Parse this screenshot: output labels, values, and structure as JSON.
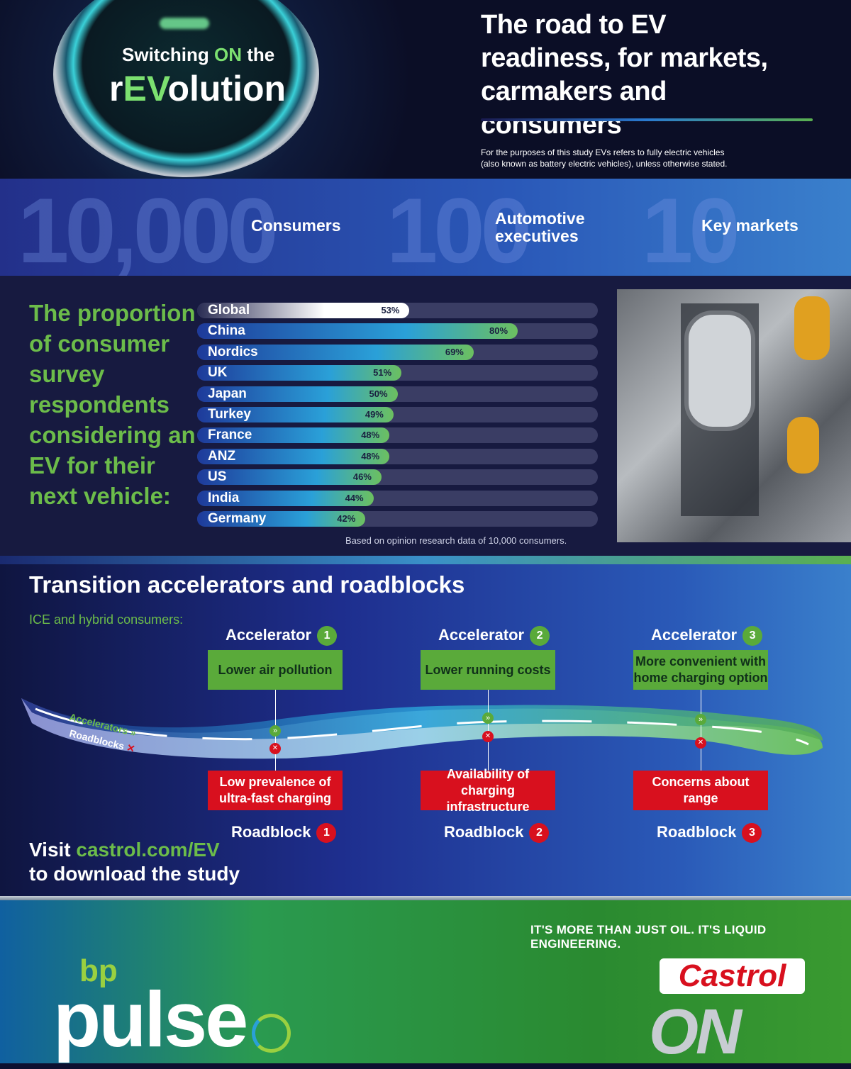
{
  "hero": {
    "badge_line1_a": "Switching ",
    "badge_line1_on": "ON",
    "badge_line1_b": " the",
    "badge_line2_a": "r",
    "badge_line2_ev": "EV",
    "badge_line2_b": "olution",
    "title": "The road to EV readiness, for markets, carmakers and consumers",
    "note_line1": "For the purposes of this study EVs refers to fully electric vehicles",
    "note_line2": "(also known as battery electric vehicles), unless otherwise stated."
  },
  "stats": [
    {
      "value": "10,000",
      "label": "Consumers"
    },
    {
      "value": "100",
      "label_1": "Automotive",
      "label_2": "executives"
    },
    {
      "value": "10",
      "label": "Key markets"
    }
  ],
  "chart_data": {
    "type": "bar",
    "orientation": "horizontal",
    "title": "The proportion of consumer survey respondents considering an EV for their next vehicle:",
    "categories": [
      "Global",
      "China",
      "Nordics",
      "UK",
      "Japan",
      "Turkey",
      "France",
      "ANZ",
      "US",
      "India",
      "Germany"
    ],
    "values": [
      53,
      80,
      69,
      51,
      50,
      49,
      48,
      48,
      46,
      44,
      42
    ],
    "value_labels": [
      "53%",
      "80%",
      "69%",
      "51%",
      "50%",
      "49%",
      "48%",
      "48%",
      "46%",
      "44%",
      "42%"
    ],
    "xlim": [
      0,
      100
    ],
    "unit": "%",
    "source": "Based on opinion research data of 10,000 consumers.",
    "colors": {
      "global": "#ffffff",
      "others_start": "#1e3a9a",
      "others_mid": "#2aa0d8",
      "others_end": "#6cc060",
      "track": "#3a3d64"
    }
  },
  "roadmap": {
    "title": "Transition accelerators and roadblocks",
    "subtitle": "ICE and hybrid consumers:",
    "legend_accelerators": "Accelerators",
    "legend_roadblocks": "Roadblocks",
    "accelerators": [
      {
        "label": "Accelerator",
        "num": "1",
        "text": "Lower air pollution"
      },
      {
        "label": "Accelerator",
        "num": "2",
        "text": "Lower running costs"
      },
      {
        "label": "Accelerator",
        "num": "3",
        "text": "More convenient with home charging option"
      }
    ],
    "roadblocks": [
      {
        "label": "Roadblock",
        "num": "1",
        "text": "Low prevalence of ultra-fast charging"
      },
      {
        "label": "Roadblock",
        "num": "2",
        "text": "Availability of charging infrastructure"
      },
      {
        "label": "Roadblock",
        "num": "3",
        "text": "Concerns about range"
      }
    ],
    "visit_a": "Visit ",
    "visit_link": "castrol.com/EV",
    "visit_b": "to download the study"
  },
  "footer": {
    "tagline": "IT'S MORE THAN JUST OIL. IT'S LIQUID ENGINEERING.",
    "logo_bp": "bp",
    "logo_pulse": "pulse",
    "logo_castrol": "Castrol",
    "logo_on": "ON"
  },
  "colors": {
    "green": "#6cbc4a",
    "red": "#d8101e",
    "blue": "#2a58b8"
  }
}
